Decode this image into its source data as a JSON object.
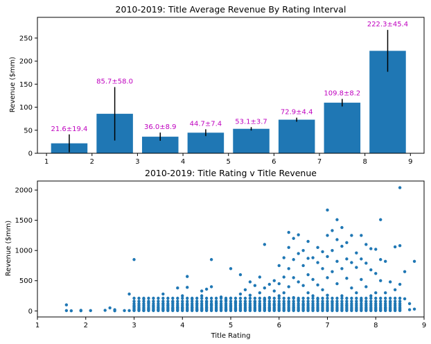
{
  "colors": {
    "bar": "#1f77b4",
    "point": "#1f77b4",
    "error_bar": "#000000",
    "bar_label": "#bf00bf",
    "axis": "#000000"
  },
  "chart_data": [
    {
      "type": "bar",
      "title": "2010-2019: Title Average Revenue By Rating Interval",
      "xlabel": "",
      "ylabel": "Revenue ($mm)",
      "xlim": [
        0.8,
        9.3
      ],
      "ylim": [
        0,
        295
      ],
      "xticks": [
        1,
        2,
        3,
        4,
        5,
        6,
        7,
        8,
        9
      ],
      "yticks": [
        0,
        50,
        100,
        150,
        200,
        250
      ],
      "bar_width": 0.8,
      "bars": [
        {
          "x": 1.5,
          "value": 21.6,
          "err": 19.4,
          "label": "21.6±19.4"
        },
        {
          "x": 2.5,
          "value": 85.7,
          "err": 58.0,
          "label": "85.7±58.0"
        },
        {
          "x": 3.5,
          "value": 36.0,
          "err": 8.9,
          "label": "36.0±8.9"
        },
        {
          "x": 4.5,
          "value": 44.7,
          "err": 7.4,
          "label": "44.7±7.4"
        },
        {
          "x": 5.5,
          "value": 53.1,
          "err": 3.7,
          "label": "53.1±3.7"
        },
        {
          "x": 6.5,
          "value": 72.9,
          "err": 4.4,
          "label": "72.9±4.4"
        },
        {
          "x": 7.5,
          "value": 109.8,
          "err": 8.2,
          "label": "109.8±8.2"
        },
        {
          "x": 8.5,
          "value": 222.3,
          "err": 45.4,
          "label": "222.3±45.4"
        }
      ]
    },
    {
      "type": "scatter",
      "title": "2010-2019: Title Rating v Title Revenue",
      "xlabel": "Title Rating",
      "ylabel": "Revenue ($mm)",
      "xlim": [
        1,
        9
      ],
      "ylim": [
        -100,
        2150
      ],
      "xticks": [
        1,
        2,
        3,
        4,
        5,
        6,
        7,
        8,
        9
      ],
      "yticks": [
        0,
        500,
        1000,
        1500,
        2000
      ],
      "points": [
        [
          1.6,
          100
        ],
        [
          1.6,
          5
        ],
        [
          1.7,
          2
        ],
        [
          1.9,
          10
        ],
        [
          1.9,
          3
        ],
        [
          2.1,
          5
        ],
        [
          2.4,
          10
        ],
        [
          2.5,
          50
        ],
        [
          2.6,
          20
        ],
        [
          2.6,
          2
        ],
        [
          2.8,
          5
        ],
        [
          2.9,
          280
        ],
        [
          2.9,
          5
        ],
        [
          3.0,
          850
        ],
        [
          3.0,
          75
        ],
        [
          3.0,
          10
        ],
        [
          3.1,
          20
        ],
        [
          3.2,
          200
        ],
        [
          3.2,
          5
        ],
        [
          3.3,
          140
        ],
        [
          3.3,
          30
        ],
        [
          3.4,
          80
        ],
        [
          3.4,
          10
        ],
        [
          3.5,
          60
        ],
        [
          3.5,
          20
        ],
        [
          3.6,
          280
        ],
        [
          3.6,
          120
        ],
        [
          3.6,
          30
        ],
        [
          3.7,
          90
        ],
        [
          3.8,
          150
        ],
        [
          3.8,
          40
        ],
        [
          3.9,
          380
        ],
        [
          3.9,
          60
        ],
        [
          4.0,
          250
        ],
        [
          4.0,
          50
        ],
        [
          4.1,
          100
        ],
        [
          4.1,
          570
        ],
        [
          4.1,
          390
        ],
        [
          4.2,
          200
        ],
        [
          4.2,
          60
        ],
        [
          4.3,
          120
        ],
        [
          4.3,
          20
        ],
        [
          4.4,
          250
        ],
        [
          4.4,
          330
        ],
        [
          4.4,
          30
        ],
        [
          4.5,
          360
        ],
        [
          4.5,
          150
        ],
        [
          4.5,
          60
        ],
        [
          4.6,
          850
        ],
        [
          4.6,
          400
        ],
        [
          4.6,
          100
        ],
        [
          4.7,
          130
        ],
        [
          4.8,
          230
        ],
        [
          4.8,
          60
        ],
        [
          4.9,
          180
        ],
        [
          4.9,
          20
        ],
        [
          5.0,
          700
        ],
        [
          5.0,
          210
        ],
        [
          5.0,
          80
        ],
        [
          5.1,
          140
        ],
        [
          5.1,
          30
        ],
        [
          5.2,
          600
        ],
        [
          5.2,
          280
        ],
        [
          5.2,
          90
        ],
        [
          5.3,
          350
        ],
        [
          5.3,
          120
        ],
        [
          5.4,
          480
        ],
        [
          5.4,
          260
        ],
        [
          5.4,
          60
        ],
        [
          5.5,
          420
        ],
        [
          5.5,
          150
        ],
        [
          5.6,
          560
        ],
        [
          5.6,
          300
        ],
        [
          5.6,
          80
        ],
        [
          5.7,
          1100
        ],
        [
          5.7,
          380
        ],
        [
          5.7,
          190
        ],
        [
          5.8,
          440
        ],
        [
          5.8,
          220
        ],
        [
          5.8,
          50
        ],
        [
          5.9,
          500
        ],
        [
          5.9,
          330
        ],
        [
          5.9,
          100
        ],
        [
          6.0,
          750
        ],
        [
          6.0,
          450
        ],
        [
          6.0,
          250
        ],
        [
          6.0,
          90
        ],
        [
          6.1,
          880
        ],
        [
          6.1,
          560
        ],
        [
          6.1,
          300
        ],
        [
          6.1,
          120
        ],
        [
          6.2,
          1300
        ],
        [
          6.2,
          1050
        ],
        [
          6.2,
          700
        ],
        [
          6.2,
          400
        ],
        [
          6.2,
          150
        ],
        [
          6.3,
          1200
        ],
        [
          6.3,
          850
        ],
        [
          6.3,
          550
        ],
        [
          6.3,
          220
        ],
        [
          6.3,
          60
        ],
        [
          6.4,
          1260
        ],
        [
          6.4,
          950
        ],
        [
          6.4,
          480
        ],
        [
          6.4,
          180
        ],
        [
          6.5,
          1000
        ],
        [
          6.5,
          750
        ],
        [
          6.5,
          420
        ],
        [
          6.5,
          100
        ],
        [
          6.6,
          1150
        ],
        [
          6.6,
          870
        ],
        [
          6.6,
          600
        ],
        [
          6.6,
          300
        ],
        [
          6.7,
          880
        ],
        [
          6.7,
          520
        ],
        [
          6.7,
          250
        ],
        [
          6.7,
          50
        ],
        [
          6.8,
          1050
        ],
        [
          6.8,
          800
        ],
        [
          6.8,
          430
        ],
        [
          6.8,
          200
        ],
        [
          6.9,
          980
        ],
        [
          6.9,
          700
        ],
        [
          6.9,
          350
        ],
        [
          6.9,
          120
        ],
        [
          7.0,
          1670
        ],
        [
          7.0,
          1250
        ],
        [
          7.0,
          900
        ],
        [
          7.0,
          550
        ],
        [
          7.0,
          260
        ],
        [
          7.1,
          1330
        ],
        [
          7.1,
          1000
        ],
        [
          7.1,
          650
        ],
        [
          7.1,
          150
        ],
        [
          7.2,
          1510
        ],
        [
          7.2,
          1180
        ],
        [
          7.2,
          820
        ],
        [
          7.2,
          450
        ],
        [
          7.3,
          1380
        ],
        [
          7.3,
          1070
        ],
        [
          7.3,
          700
        ],
        [
          7.3,
          250
        ],
        [
          7.4,
          1130
        ],
        [
          7.4,
          860
        ],
        [
          7.4,
          540
        ],
        [
          7.4,
          90
        ],
        [
          7.5,
          1250
        ],
        [
          7.5,
          800
        ],
        [
          7.5,
          380
        ],
        [
          7.6,
          960
        ],
        [
          7.6,
          720
        ],
        [
          7.6,
          300
        ],
        [
          7.7,
          1250
        ],
        [
          7.7,
          860
        ],
        [
          7.7,
          520
        ],
        [
          7.7,
          180
        ],
        [
          7.8,
          1100
        ],
        [
          7.8,
          790
        ],
        [
          7.8,
          400
        ],
        [
          7.9,
          1030
        ],
        [
          7.9,
          680
        ],
        [
          7.9,
          250
        ],
        [
          8.0,
          1020
        ],
        [
          8.0,
          620
        ],
        [
          8.0,
          300
        ],
        [
          8.1,
          1510
        ],
        [
          8.1,
          850
        ],
        [
          8.1,
          500
        ],
        [
          8.2,
          820
        ],
        [
          8.2,
          300
        ],
        [
          8.2,
          50
        ],
        [
          8.3,
          480
        ],
        [
          8.3,
          150
        ],
        [
          8.4,
          1060
        ],
        [
          8.4,
          350
        ],
        [
          8.5,
          2040
        ],
        [
          8.5,
          1080
        ],
        [
          8.5,
          440
        ],
        [
          8.6,
          650
        ],
        [
          8.6,
          200
        ],
        [
          8.7,
          120
        ],
        [
          8.7,
          20
        ],
        [
          8.8,
          820
        ],
        [
          8.8,
          30
        ]
      ],
      "dense_band": {
        "x_min": 3.0,
        "x_max": 8.5,
        "x_step": 0.1,
        "y_values": [
          5,
          20,
          40,
          60,
          90,
          120,
          160,
          210
        ]
      }
    }
  ]
}
